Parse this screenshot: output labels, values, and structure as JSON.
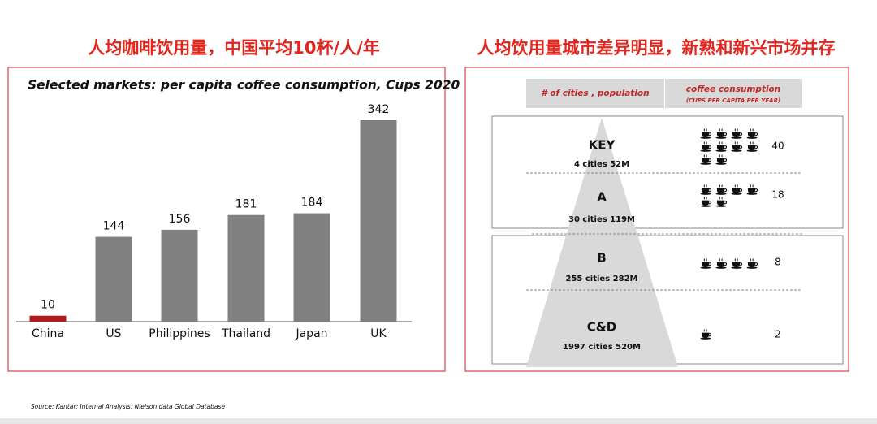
{
  "left_heading": "人均咖啡饮用量，中国平均10杯/人/年",
  "right_heading": "人均饮用量城市差异明显，新熟和新兴市场并存",
  "chart_data": {
    "type": "bar",
    "title": "Selected markets: per capita coffee consumption, Cups 2020",
    "categories": [
      "China",
      "US",
      "Philippines",
      "Thailand",
      "Japan",
      "UK"
    ],
    "values": [
      10,
      144,
      156,
      181,
      184,
      342
    ],
    "colors": [
      "#b01c1c",
      "#808080",
      "#808080",
      "#808080",
      "#808080",
      "#808080"
    ]
  },
  "tiers": {
    "header_left": "# of cities , population",
    "header_right": "coffee consumption",
    "header_right_sub": "(CUPS PER CAPITA PER YEAR)",
    "rows": [
      {
        "name": "KEY",
        "detail": "4 cities 52M",
        "cups": 40
      },
      {
        "name": "A",
        "detail": "30 cities 119M",
        "cups": 18
      },
      {
        "name": "B",
        "detail": "255 cities 282M",
        "cups": 8
      },
      {
        "name": "C&D",
        "detail": "1997 cities 520M",
        "cups": 2
      }
    ]
  },
  "source": "Source: Kantar; Internal Analysis; Nielson data Global Database"
}
